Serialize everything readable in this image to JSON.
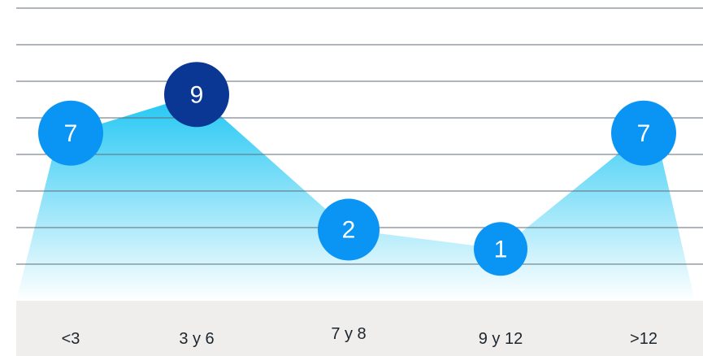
{
  "chart_data": {
    "type": "area",
    "categories": [
      "<3",
      "3 y 6",
      "7 y 8",
      "9 y 12",
      ">12"
    ],
    "values": [
      7,
      9,
      2,
      1,
      7
    ],
    "value_labels": [
      "7",
      "9",
      "2",
      "1",
      "7"
    ],
    "ylim": [
      0,
      12
    ],
    "grid": true,
    "legend": "none",
    "colors": {
      "area_top": "#1fc6f3",
      "area_bottom": "#ffffff",
      "marker": "#0a95f4",
      "marker_highlight": "#0b3794",
      "label_text": "#ffffff",
      "axis_band": "#efeeec",
      "grid": "#5f6b76"
    }
  }
}
